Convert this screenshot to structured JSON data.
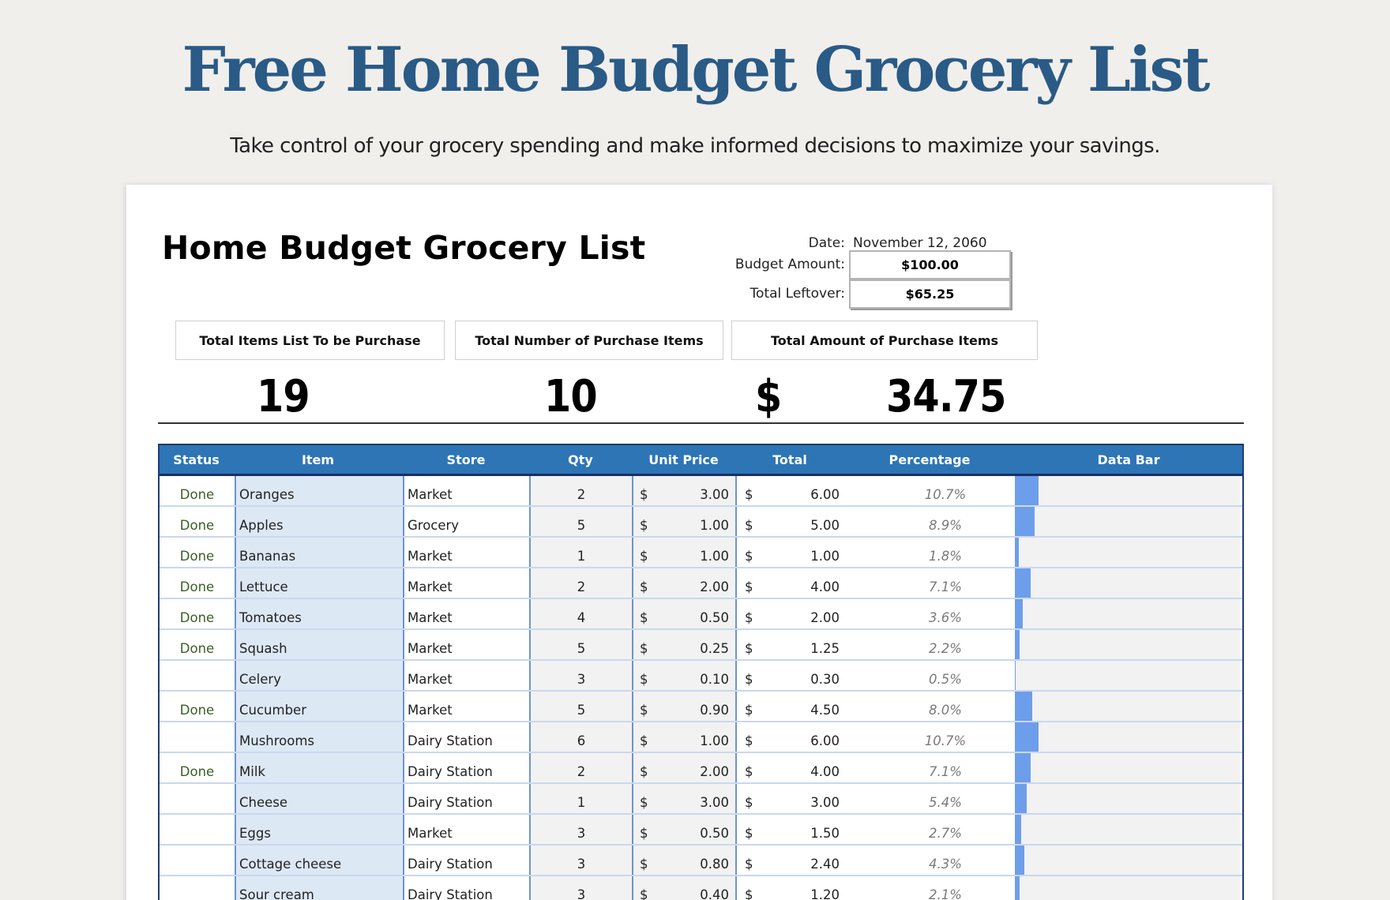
{
  "hero": {
    "title": "Free Home Budget Grocery List",
    "subtitle": "Take control of your grocery spending and make informed decisions to maximize your savings."
  },
  "sheet": {
    "title": "Home Budget Grocery List",
    "date_label": "Date:",
    "date_value": "November 12, 2060",
    "budget_label": "Budget Amount:",
    "budget_value": "$100.00",
    "leftover_label": "Total Leftover:",
    "leftover_value": "$65.25"
  },
  "stats": [
    {
      "label": "Total Items List To be Purchase",
      "value": "19"
    },
    {
      "label": "Total Number of Purchase Items",
      "value": "10"
    },
    {
      "label": "Total Amount of Purchase Items",
      "currency": "$",
      "value": "34.75"
    }
  ],
  "colors": {
    "title": "#2a5a86",
    "header_bg": "#2e75b6",
    "item_col_bg": "#dde8f5",
    "bar": "#6d9eeb",
    "done_text": "#3b5e25"
  },
  "table": {
    "headers": [
      "Status",
      "Item",
      "Store",
      "Qty",
      "Unit Price",
      "Total",
      "Percentage",
      "Data Bar"
    ],
    "currency_symbol": "$",
    "rows": [
      {
        "status": "Done",
        "item": "Oranges",
        "store": "Market",
        "qty": "2",
        "unit_price": "3.00",
        "total": "6.00",
        "pct": "10.7%",
        "pct_value": 10.7
      },
      {
        "status": "Done",
        "item": "Apples",
        "store": "Grocery",
        "qty": "5",
        "unit_price": "1.00",
        "total": "5.00",
        "pct": "8.9%",
        "pct_value": 8.9
      },
      {
        "status": "Done",
        "item": "Bananas",
        "store": "Market",
        "qty": "1",
        "unit_price": "1.00",
        "total": "1.00",
        "pct": "1.8%",
        "pct_value": 1.8
      },
      {
        "status": "Done",
        "item": "Lettuce",
        "store": "Market",
        "qty": "2",
        "unit_price": "2.00",
        "total": "4.00",
        "pct": "7.1%",
        "pct_value": 7.1
      },
      {
        "status": "Done",
        "item": "Tomatoes",
        "store": "Market",
        "qty": "4",
        "unit_price": "0.50",
        "total": "2.00",
        "pct": "3.6%",
        "pct_value": 3.6
      },
      {
        "status": "Done",
        "item": "Squash",
        "store": "Market",
        "qty": "5",
        "unit_price": "0.25",
        "total": "1.25",
        "pct": "2.2%",
        "pct_value": 2.2
      },
      {
        "status": "",
        "item": "Celery",
        "store": "Market",
        "qty": "3",
        "unit_price": "0.10",
        "total": "0.30",
        "pct": "0.5%",
        "pct_value": 0.5
      },
      {
        "status": "Done",
        "item": "Cucumber",
        "store": "Market",
        "qty": "5",
        "unit_price": "0.90",
        "total": "4.50",
        "pct": "8.0%",
        "pct_value": 8.0
      },
      {
        "status": "",
        "item": "Mushrooms",
        "store": "Dairy Station",
        "qty": "6",
        "unit_price": "1.00",
        "total": "6.00",
        "pct": "10.7%",
        "pct_value": 10.7
      },
      {
        "status": "Done",
        "item": "Milk",
        "store": "Dairy Station",
        "qty": "2",
        "unit_price": "2.00",
        "total": "4.00",
        "pct": "7.1%",
        "pct_value": 7.1
      },
      {
        "status": "",
        "item": "Cheese",
        "store": "Dairy Station",
        "qty": "1",
        "unit_price": "3.00",
        "total": "3.00",
        "pct": "5.4%",
        "pct_value": 5.4
      },
      {
        "status": "",
        "item": "Eggs",
        "store": "Market",
        "qty": "3",
        "unit_price": "0.50",
        "total": "1.50",
        "pct": "2.7%",
        "pct_value": 2.7
      },
      {
        "status": "",
        "item": "Cottage cheese",
        "store": "Dairy Station",
        "qty": "3",
        "unit_price": "0.80",
        "total": "2.40",
        "pct": "4.3%",
        "pct_value": 4.3
      },
      {
        "status": "",
        "item": "Sour cream",
        "store": "Dairy Station",
        "qty": "3",
        "unit_price": "0.40",
        "total": "1.20",
        "pct": "2.1%",
        "pct_value": 2.1
      }
    ]
  }
}
